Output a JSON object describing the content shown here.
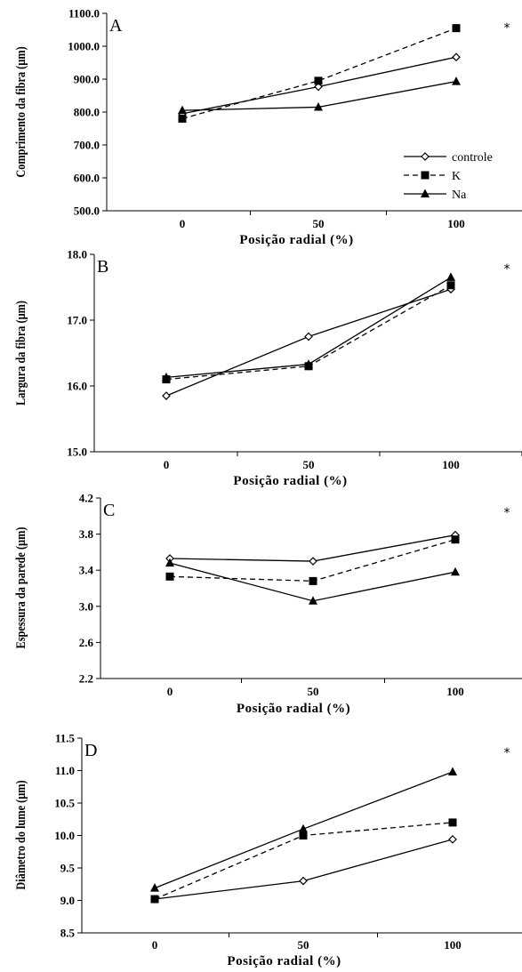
{
  "figure": {
    "xlabel": "Posição radial (%)",
    "legend": {
      "placement": "right",
      "entries": [
        {
          "series": "controle",
          "label": "controle",
          "marker": "diamond-open",
          "dash": "solid"
        },
        {
          "series": "K",
          "label": "K",
          "marker": "square-filled",
          "dash": "dashed"
        },
        {
          "series": "Na",
          "label": "Na",
          "marker": "triangle-filled",
          "dash": "solid"
        }
      ]
    },
    "colors": {
      "line": "#000000",
      "axis": "#000000",
      "background": "#ffffff"
    }
  },
  "chart_data": [
    {
      "type": "line",
      "panel_label": "A",
      "marker_symbol": "*",
      "ylabel": "Comprimento da fibra (µm)",
      "xlabel": "Posição radial (%)",
      "categories": [
        "0",
        "50",
        "100"
      ],
      "ylim": [
        500,
        1100
      ],
      "yticks": [
        500,
        600,
        700,
        800,
        900,
        1000,
        1100
      ],
      "ytick_labels": [
        "500.0",
        "600.0",
        "700.0",
        "800.0",
        "900.0",
        "1000.0",
        "1100.0"
      ],
      "grid": false,
      "legend": "right",
      "series": [
        {
          "name": "controle",
          "values": [
            795,
            877,
            967
          ]
        },
        {
          "name": "K",
          "values": [
            780,
            895,
            1055
          ]
        },
        {
          "name": "Na",
          "values": [
            805,
            815,
            893
          ]
        }
      ]
    },
    {
      "type": "line",
      "panel_label": "B",
      "marker_symbol": "*",
      "ylabel": "Largura da fibra (µm)",
      "xlabel": "Posição radial (%)",
      "categories": [
        "0",
        "50",
        "100"
      ],
      "ylim": [
        15,
        18
      ],
      "yticks": [
        15,
        16,
        17,
        18
      ],
      "ytick_labels": [
        "15.0",
        "16.0",
        "17.0",
        "18.0"
      ],
      "grid": false,
      "series": [
        {
          "name": "controle",
          "values": [
            15.85,
            16.75,
            17.47
          ]
        },
        {
          "name": "K",
          "values": [
            16.1,
            16.3,
            17.53
          ]
        },
        {
          "name": "Na",
          "values": [
            16.13,
            16.33,
            17.65
          ]
        }
      ]
    },
    {
      "type": "line",
      "panel_label": "C",
      "marker_symbol": "*",
      "ylabel": "Espessura da parede (µm)",
      "xlabel": "Posição radial (%)",
      "categories": [
        "0",
        "50",
        "100"
      ],
      "ylim": [
        2.2,
        4.2
      ],
      "yticks": [
        2.2,
        2.6,
        3.0,
        3.4,
        3.8,
        4.2
      ],
      "ytick_labels": [
        "2.2",
        "2.6",
        "3.0",
        "3.4",
        "3.8",
        "4.2"
      ],
      "grid": false,
      "series": [
        {
          "name": "controle",
          "values": [
            3.53,
            3.5,
            3.79
          ]
        },
        {
          "name": "K",
          "values": [
            3.33,
            3.28,
            3.74
          ]
        },
        {
          "name": "Na",
          "values": [
            3.48,
            3.06,
            3.38
          ]
        }
      ]
    },
    {
      "type": "line",
      "panel_label": "D",
      "marker_symbol": "*",
      "ylabel": "Diâmetro do lume (µm)",
      "xlabel": "Posição radial (%)",
      "categories": [
        "0",
        "50",
        "100"
      ],
      "ylim": [
        8.5,
        11.5
      ],
      "yticks": [
        8.5,
        9.0,
        9.5,
        10.0,
        10.5,
        11.0,
        11.5
      ],
      "ytick_labels": [
        "8.5",
        "9.0",
        "9.5",
        "10.0",
        "10.5",
        "11.0",
        "11.5"
      ],
      "grid": false,
      "series": [
        {
          "name": "controle",
          "values": [
            9.02,
            9.3,
            9.94
          ]
        },
        {
          "name": "K",
          "values": [
            9.02,
            10.0,
            10.2
          ]
        },
        {
          "name": "Na",
          "values": [
            9.19,
            10.1,
            10.98
          ]
        }
      ]
    }
  ]
}
